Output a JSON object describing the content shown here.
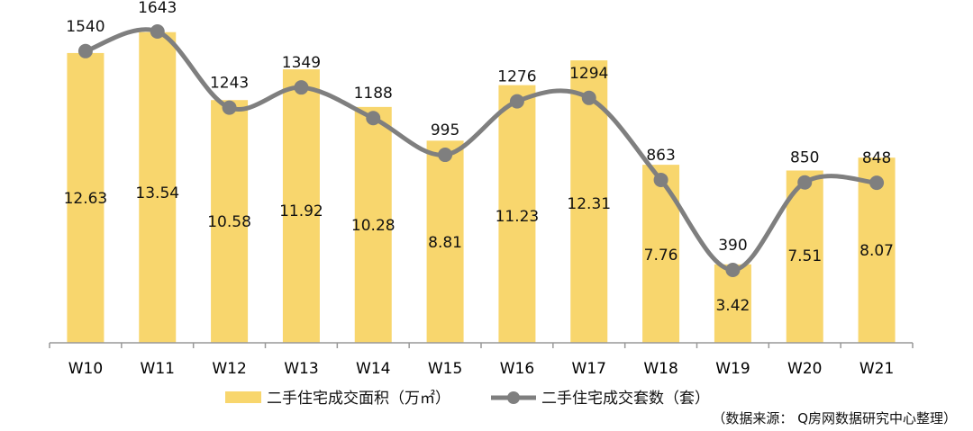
{
  "chart_data": {
    "type": "bar",
    "categories": [
      "W10",
      "W11",
      "W12",
      "W13",
      "W14",
      "W15",
      "W16",
      "W17",
      "W18",
      "W19",
      "W20",
      "W21"
    ],
    "series": [
      {
        "name": "二手住宅成交面积（万㎡）",
        "type": "bar",
        "axis": "right",
        "values": [
          12.63,
          13.54,
          10.58,
          11.92,
          10.28,
          8.81,
          11.23,
          12.31,
          7.76,
          3.42,
          7.51,
          8.07
        ]
      },
      {
        "name": "二手住宅成交套数（套）",
        "type": "line",
        "smooth": true,
        "axis": "left",
        "values": [
          1540,
          1643,
          1243,
          1349,
          1188,
          995,
          1276,
          1294,
          863,
          390,
          850,
          848
        ]
      }
    ],
    "ylim_count": [
      0,
      1800
    ],
    "ylim_area": [
      0,
      14.0
    ],
    "grid": false,
    "legend_position": "bottom",
    "colors": {
      "bar": "#F8D66D",
      "line": "#7F7F7F",
      "axis": "#999999"
    },
    "source": "（数据来源： Q房网数据研究中心整理）"
  }
}
